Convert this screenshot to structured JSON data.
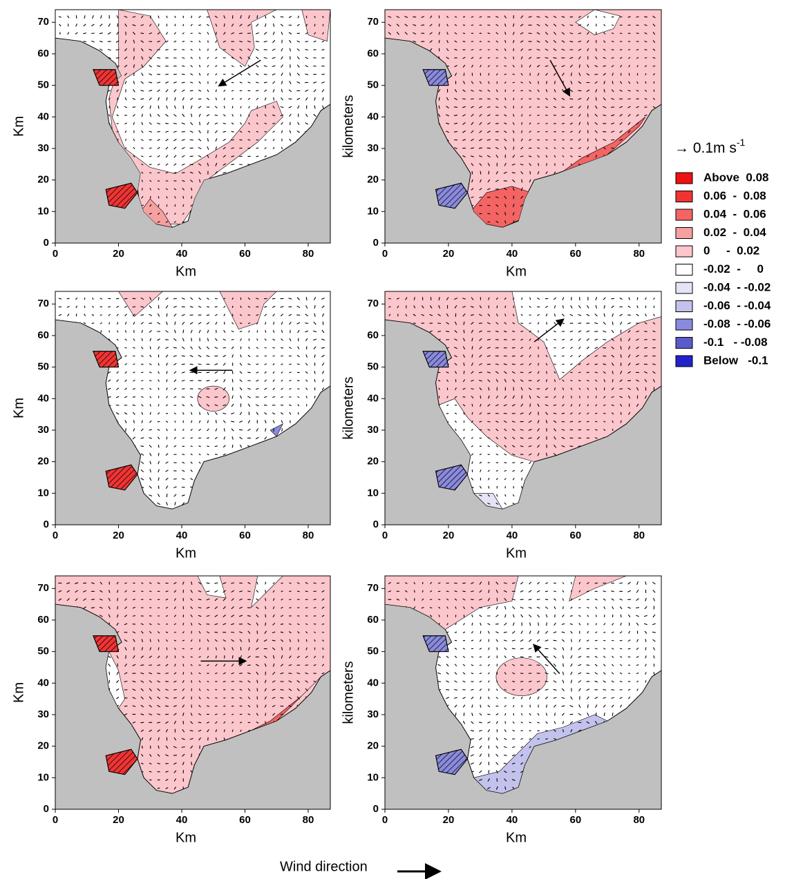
{
  "panels": [
    {
      "xlabel": "Km",
      "ylabel": "Km",
      "xlim": [
        0,
        87
      ],
      "ylim": [
        0,
        74
      ],
      "xticks": [
        0,
        20,
        40,
        60,
        80
      ],
      "yticks": [
        0,
        10,
        20,
        30,
        40,
        50,
        60,
        70
      ]
    },
    {
      "xlabel": "Km",
      "ylabel": "kilometers",
      "xlim": [
        0,
        87
      ],
      "ylim": [
        0,
        74
      ],
      "xticks": [
        0,
        20,
        40,
        60,
        80
      ],
      "yticks": [
        0,
        10,
        20,
        30,
        40,
        50,
        60,
        70
      ]
    },
    {
      "xlabel": "Km",
      "ylabel": "Km",
      "xlim": [
        0,
        87
      ],
      "ylim": [
        0,
        74
      ],
      "xticks": [
        0,
        20,
        40,
        60,
        80
      ],
      "yticks": [
        0,
        10,
        20,
        30,
        40,
        50,
        60,
        70
      ]
    },
    {
      "xlabel": "Km",
      "ylabel": "kilometers",
      "xlim": [
        0,
        87
      ],
      "ylim": [
        0,
        74
      ],
      "xticks": [
        0,
        20,
        40,
        60,
        80
      ],
      "yticks": [
        0,
        10,
        20,
        30,
        40,
        50,
        60,
        70
      ]
    },
    {
      "xlabel": "Km",
      "ylabel": "Km",
      "xlim": [
        0,
        87
      ],
      "ylim": [
        0,
        74
      ],
      "xticks": [
        0,
        20,
        40,
        60,
        80
      ],
      "yticks": [
        0,
        10,
        20,
        30,
        40,
        50,
        60,
        70
      ]
    },
    {
      "xlabel": "Km",
      "ylabel": "kilometers",
      "xlim": [
        0,
        87
      ],
      "ylim": [
        0,
        74
      ],
      "xticks": [
        0,
        20,
        40,
        60,
        80
      ],
      "yticks": [
        0,
        10,
        20,
        30,
        40,
        50,
        60,
        70
      ]
    }
  ],
  "legend": {
    "scale": "→ 0.1m s",
    "scale_exp": "-1",
    "items": [
      {
        "label": "Above  0.08",
        "color": "#ee1111"
      },
      {
        "label": "0.06  -  0.08",
        "color": "#f03434"
      },
      {
        "label": "0.04  -  0.06",
        "color": "#f46464"
      },
      {
        "label": "0.02  -  0.04",
        "color": "#f7a0a0"
      },
      {
        "label": "0     -  0.02",
        "color": "#fbc6cc"
      },
      {
        "label": "-0.02  -     0",
        "color": "#ffffff"
      },
      {
        "label": "-0.04  - -0.02",
        "color": "#e4e4f6"
      },
      {
        "label": "-0.06  - -0.04",
        "color": "#c2c2ec"
      },
      {
        "label": "-0.08  - -0.06",
        "color": "#8a8ade"
      },
      {
        "label": "-0.1   - -0.08",
        "color": "#5a5acc"
      },
      {
        "label": "Below   -0.1",
        "color": "#2222cc"
      }
    ]
  },
  "wind_label": "Wind direction"
}
